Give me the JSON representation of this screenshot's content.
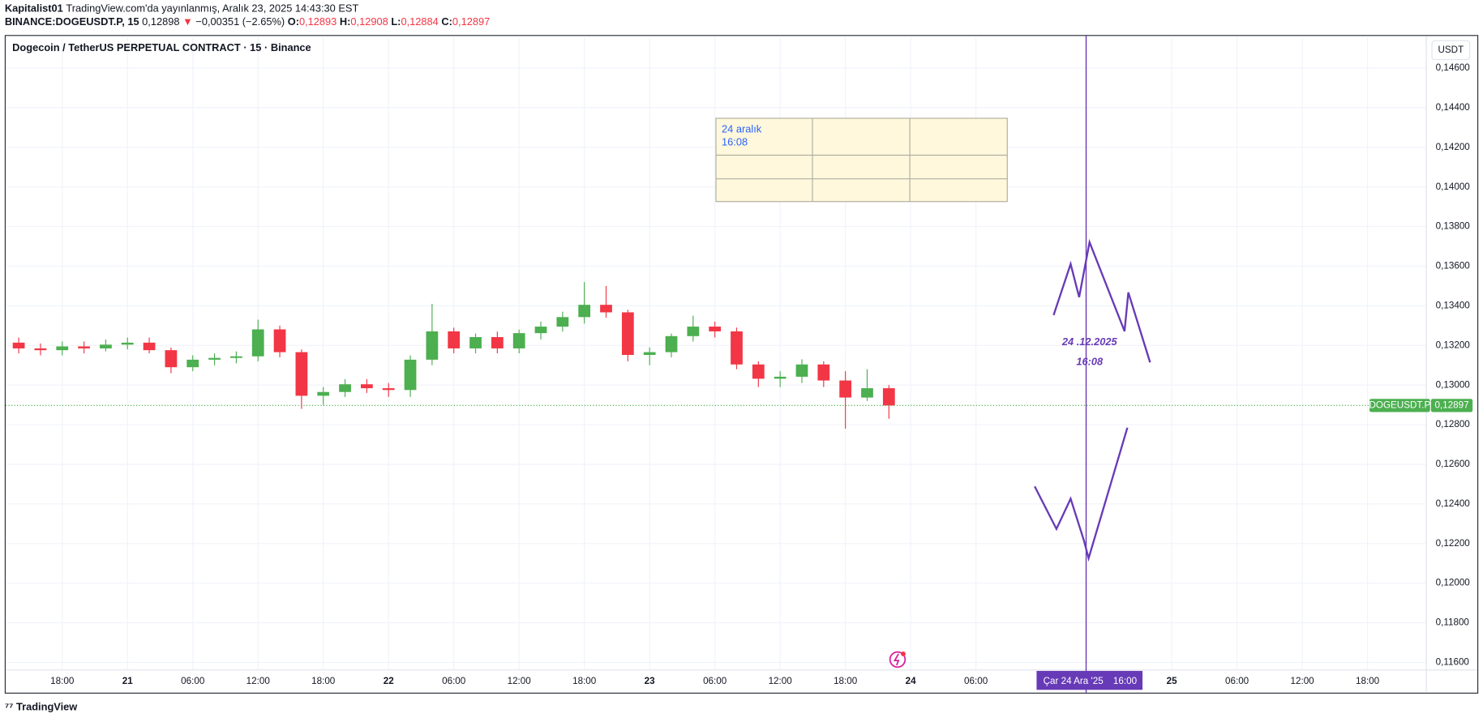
{
  "header": {
    "publisher": "Kapitalist01",
    "published": "TradingView.com'da yayınlanmış, Aralık 23, 2025 14:43:30 EST",
    "symbol": "BINANCE:DOGEUSDT.P, 15",
    "price": "0,12898",
    "arrow": "▼",
    "change": "−0,00351 (−2.65%)",
    "open_label": "O:",
    "open": "0,12893",
    "high_label": "H:",
    "high": "0,12908",
    "low_label": "L:",
    "low": "0,12884",
    "close_label": "C:",
    "close": "0,12897"
  },
  "footer": {
    "brand": "TradingView"
  },
  "chart_data": {
    "type": "candlestick",
    "title": "Dogecoin / TetherUS PERPETUAL CONTRACT · 15 · Binance",
    "unit": "USDT",
    "up_color": "#4caf50",
    "down_color": "#f23645",
    "grid": true,
    "xlim": [
      -5.2,
      125.4
    ],
    "ylim": [
      0.11562,
      0.14762
    ],
    "xticks": [
      {
        "value": 0,
        "label": "18:00"
      },
      {
        "value": 6,
        "label": "21"
      },
      {
        "value": 12,
        "label": "06:00"
      },
      {
        "value": 18,
        "label": "12:00"
      },
      {
        "value": 24,
        "label": "18:00"
      },
      {
        "value": 30,
        "label": "22"
      },
      {
        "value": 36,
        "label": "06:00"
      },
      {
        "value": 42,
        "label": "12:00"
      },
      {
        "value": 48,
        "label": "18:00"
      },
      {
        "value": 54,
        "label": "23"
      },
      {
        "value": 60,
        "label": "06:00"
      },
      {
        "value": 66,
        "label": "12:00"
      },
      {
        "value": 72,
        "label": "18:00"
      },
      {
        "value": 78,
        "label": "24"
      },
      {
        "value": 84,
        "label": "06:00"
      },
      {
        "value": 102,
        "label": "25"
      },
      {
        "value": 108,
        "label": "06:00"
      },
      {
        "value": 114,
        "label": "12:00"
      },
      {
        "value": 120,
        "label": "18:00"
      }
    ],
    "yticks": [
      {
        "value": 0.116,
        "label": "0,11600"
      },
      {
        "value": 0.118,
        "label": "0,11800"
      },
      {
        "value": 0.12,
        "label": "0,12000"
      },
      {
        "value": 0.122,
        "label": "0,12200"
      },
      {
        "value": 0.124,
        "label": "0,12400"
      },
      {
        "value": 0.126,
        "label": "0,12600"
      },
      {
        "value": 0.128,
        "label": "0,12800"
      },
      {
        "value": 0.13,
        "label": "0,13000"
      },
      {
        "value": 0.132,
        "label": "0,13200"
      },
      {
        "value": 0.134,
        "label": "0,13400"
      },
      {
        "value": 0.136,
        "label": "0,13600"
      },
      {
        "value": 0.138,
        "label": "0,13800"
      },
      {
        "value": 0.14,
        "label": "0,14000"
      },
      {
        "value": 0.142,
        "label": "0,14200"
      },
      {
        "value": 0.144,
        "label": "0,14400"
      },
      {
        "value": 0.146,
        "label": "0,14600"
      }
    ],
    "x": [
      -4,
      -2,
      0,
      2,
      4,
      6,
      8,
      10,
      12,
      14,
      16,
      18,
      20,
      22,
      24,
      26,
      28,
      30,
      32,
      34,
      36,
      38,
      40,
      42,
      44,
      46,
      48,
      50,
      52,
      54,
      56,
      58,
      60,
      62,
      64,
      66,
      68,
      70,
      72,
      74,
      76
    ],
    "open": [
      0.13214,
      0.13185,
      0.13176,
      0.13195,
      0.13185,
      0.13204,
      0.13214,
      0.13176,
      0.1309,
      0.13128,
      0.13137,
      0.13145,
      0.13281,
      0.13166,
      0.12946,
      0.12965,
      0.13004,
      0.12984,
      0.12975,
      0.13128,
      0.13271,
      0.13185,
      0.13242,
      0.13185,
      0.13262,
      0.13295,
      0.13343,
      0.13405,
      0.13367,
      0.13152,
      0.13166,
      0.13247,
      0.13295,
      0.13271,
      0.13104,
      0.13032,
      0.13042,
      0.13104,
      0.13023,
      0.12937,
      0.12984
    ],
    "high": [
      0.1324,
      0.1321,
      0.1322,
      0.1322,
      0.1323,
      0.1324,
      0.1324,
      0.1319,
      0.1315,
      0.1316,
      0.1317,
      0.1333,
      0.133,
      0.1318,
      0.1299,
      0.1303,
      0.1303,
      0.1301,
      0.1315,
      0.1341,
      0.1329,
      0.1326,
      0.1327,
      0.1328,
      0.1332,
      0.1337,
      0.1352,
      0.135,
      0.1338,
      0.1319,
      0.1326,
      0.1335,
      0.1332,
      0.1329,
      0.1312,
      0.1307,
      0.1313,
      0.1312,
      0.1307,
      0.1308,
      0.13
    ],
    "low": [
      0.1316,
      0.1315,
      0.1315,
      0.1316,
      0.1317,
      0.1318,
      0.1316,
      0.1306,
      0.1307,
      0.131,
      0.1311,
      0.1312,
      0.1314,
      0.1288,
      0.129,
      0.1294,
      0.1296,
      0.1294,
      0.1294,
      0.131,
      0.1316,
      0.1316,
      0.1316,
      0.1316,
      0.1323,
      0.1327,
      0.1331,
      0.1334,
      0.1312,
      0.131,
      0.1314,
      0.1322,
      0.1324,
      0.1308,
      0.1299,
      0.1299,
      0.1301,
      0.1299,
      0.1278,
      0.1292,
      0.1283
    ],
    "close": [
      0.13185,
      0.13176,
      0.13195,
      0.13185,
      0.13204,
      0.13214,
      0.13176,
      0.1309,
      0.13128,
      0.13137,
      0.13145,
      0.13281,
      0.13166,
      0.12946,
      0.12965,
      0.13004,
      0.12984,
      0.12975,
      0.13128,
      0.13271,
      0.13185,
      0.13242,
      0.13185,
      0.13262,
      0.13295,
      0.13343,
      0.13405,
      0.13367,
      0.13152,
      0.13166,
      0.13247,
      0.13295,
      0.13271,
      0.13104,
      0.13032,
      0.13042,
      0.13104,
      0.13023,
      0.12937,
      0.12984,
      0.12897
    ],
    "last_price": {
      "value": 0.12897,
      "label": "0,12897"
    },
    "symbol_label": "DOGEUSDT.P",
    "marker_x": 94.13,
    "marker_label": "Çar 24 Ara '25",
    "marker_time": "16:00",
    "marker_color": "#673ab7",
    "note_lines": [
      "24 aralık",
      "16:08"
    ],
    "drawing_lines": [
      "24 .12.2025",
      "16:08"
    ]
  }
}
